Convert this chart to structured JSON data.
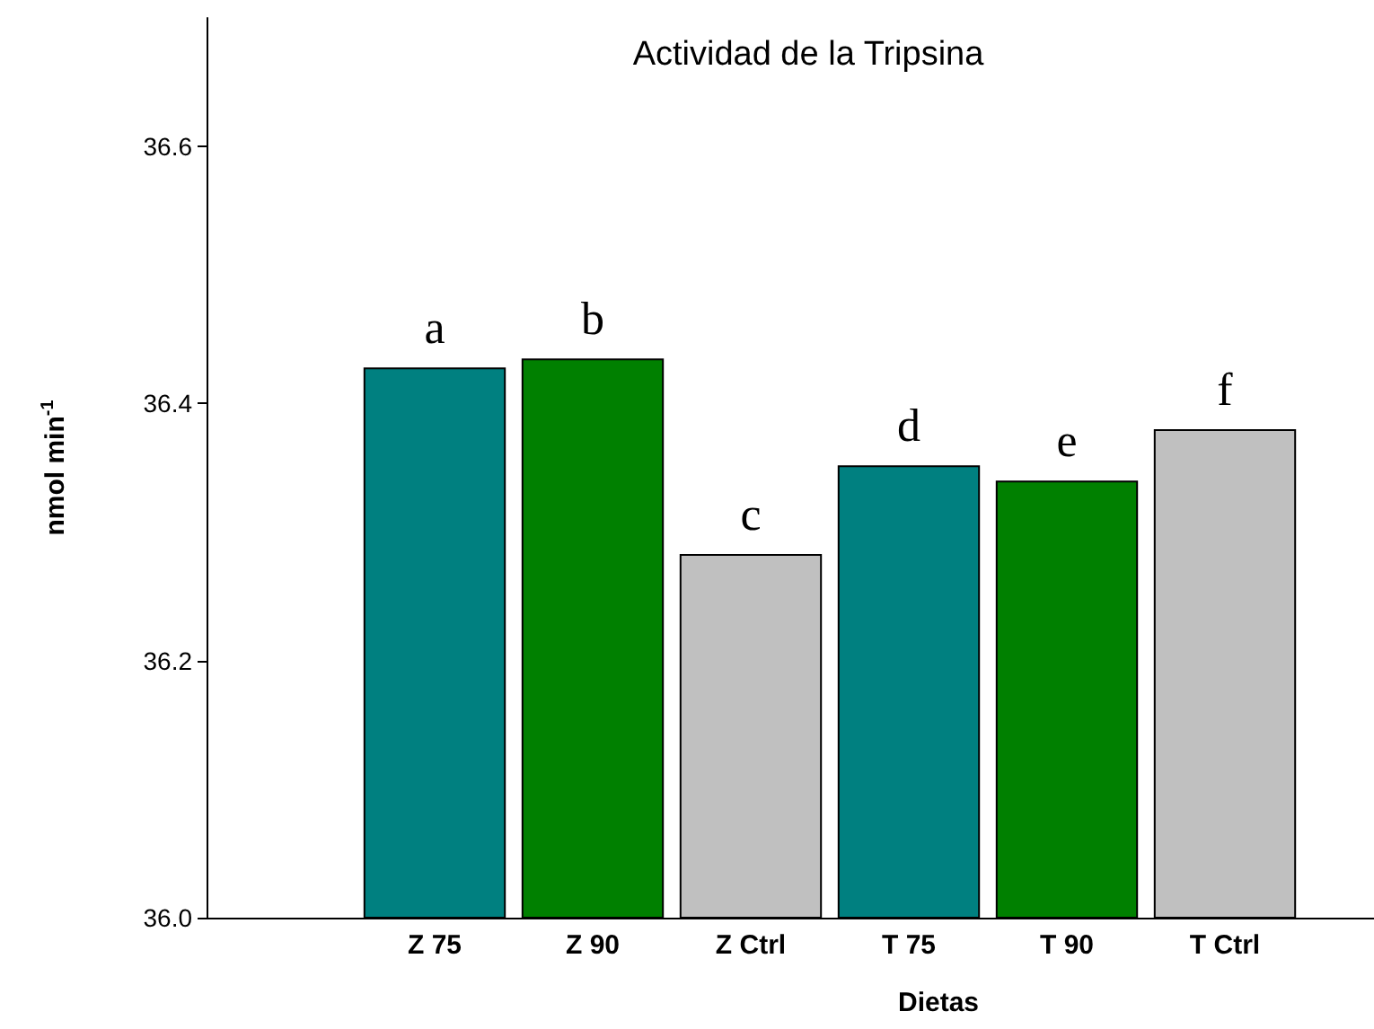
{
  "chart_data": {
    "type": "bar",
    "title": "Actividad de la Tripsina",
    "xlabel": "Dietas",
    "ylabel": "nmol min$^{-1}$",
    "categories": [
      "Z 75",
      "Z 90",
      "Z Ctrl",
      "T 75",
      "T 90",
      "T Ctrl"
    ],
    "values": [
      36.428,
      36.435,
      36.283,
      36.352,
      36.34,
      36.38
    ],
    "colors": [
      "#008080",
      "#008000",
      "#c0c0c0",
      "#008080",
      "#008000",
      "#c0c0c0"
    ],
    "ylim": [
      36.0,
      36.7
    ],
    "yticks": [
      {
        "value": 36,
        "label": "36.0"
      },
      36.2,
      36.4,
      36.6
    ],
    "grid": false,
    "annotations": [
      {
        "text": "a",
        "x": "Z 75",
        "y": 36.428
      },
      {
        "text": "b",
        "x": "Z 90",
        "y": 36.435
      },
      {
        "text": "c",
        "x": "Z Ctrl",
        "y": 36.283
      },
      {
        "text": "d",
        "x": "T 75",
        "y": 36.352
      },
      {
        "text": "e",
        "x": "T 90",
        "y": 36.34
      },
      {
        "text": "f",
        "x": "T Ctrl",
        "y": 36.38
      }
    ]
  }
}
